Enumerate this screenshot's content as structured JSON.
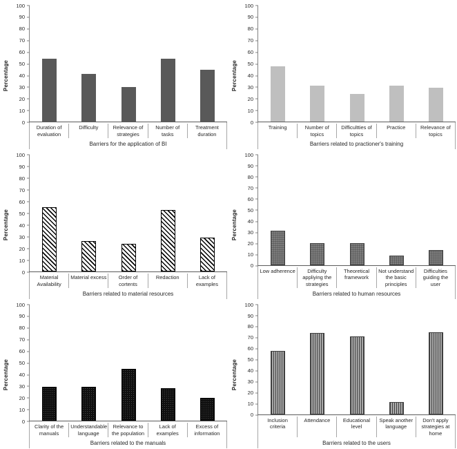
{
  "figure": {
    "description": "Six bar charts of reported barriers (percentage)"
  },
  "chart_data": [
    {
      "type": "bar",
      "title": "Barriers for the application of BI",
      "ylabel": "Percentage",
      "ylim": [
        0,
        100
      ],
      "yticks": [
        0,
        10,
        20,
        30,
        40,
        50,
        60,
        70,
        80,
        90,
        100
      ],
      "grid": false,
      "legend": "none",
      "bar_style": "solid-dark",
      "categories": [
        "Duration of evaluation",
        "Difficulty",
        "Relevance of strategies",
        "Number of tasks",
        "Treatment duration"
      ],
      "values": [
        54,
        41,
        30,
        54,
        45
      ]
    },
    {
      "type": "bar",
      "title": "Barriers related to practioner's training",
      "ylabel": "Percentage",
      "ylim": [
        0,
        100
      ],
      "yticks": [
        0,
        10,
        20,
        30,
        40,
        50,
        60,
        70,
        80,
        90,
        100
      ],
      "grid": false,
      "legend": "none",
      "bar_style": "solid-light",
      "categories": [
        "Training",
        "Number of topics",
        "Difficultties of topics",
        "Practice",
        "Relevance of topics"
      ],
      "values": [
        48,
        31,
        24,
        31,
        29
      ]
    },
    {
      "type": "bar",
      "title": "Barriers related to material resources",
      "ylabel": "Percentage",
      "ylim": [
        0,
        100
      ],
      "yticks": [
        0,
        10,
        20,
        30,
        40,
        50,
        60,
        70,
        80,
        90,
        100
      ],
      "grid": false,
      "legend": "none",
      "bar_style": "diagonal-hatch",
      "categories": [
        "Material Availability",
        "Material excess",
        "Order of cortents",
        "Redaction",
        "Lack of examples"
      ],
      "values": [
        55,
        26,
        24,
        53,
        29
      ]
    },
    {
      "type": "bar",
      "title": "Barriers related to human resources",
      "ylabel": "Percentage",
      "ylim": [
        0,
        100
      ],
      "yticks": [
        0,
        10,
        20,
        30,
        40,
        50,
        60,
        70,
        80,
        90,
        100
      ],
      "grid": false,
      "legend": "none",
      "bar_style": "gray-grid",
      "categories": [
        "Low adherence",
        "Difficulty appliying the strategies",
        "Theoretical framework",
        "Not understand the basic principles",
        "Difficulties guiding the user"
      ],
      "values": [
        31,
        20,
        20,
        9,
        14
      ]
    },
    {
      "type": "bar",
      "title": "Barriers related to the manuals",
      "ylabel": "Percentage",
      "ylim": [
        0,
        100
      ],
      "yticks": [
        0,
        10,
        20,
        30,
        40,
        50,
        60,
        70,
        80,
        90,
        100
      ],
      "grid": false,
      "legend": "none",
      "bar_style": "black-dots",
      "categories": [
        "Clarity of the manuals",
        "Understandable language",
        "Relevance to the population",
        "Lack of examples",
        "Excess of information"
      ],
      "values": [
        29,
        29,
        45,
        28,
        20
      ]
    },
    {
      "type": "bar",
      "title": "Barriers related to the users",
      "ylabel": "Percentage",
      "ylim": [
        0,
        100
      ],
      "yticks": [
        0,
        10,
        20,
        30,
        40,
        50,
        60,
        70,
        80,
        90,
        100
      ],
      "grid": false,
      "legend": "none",
      "bar_style": "vert-lines",
      "categories": [
        "Inclusion criteria",
        "Attendance",
        "Educational level",
        "Speak another language",
        "Don't apply strategies at home"
      ],
      "values": [
        58,
        74,
        71,
        11,
        75
      ]
    }
  ],
  "colors": {
    "solid_dark": "#595959",
    "solid_light": "#bfbfbf",
    "gray_fill": "#7f7f7f",
    "black_fill": "#0f0f0f",
    "axis_line": "#595959",
    "tick_line": "#808080",
    "separator_line": "#a6a6a6",
    "text": "#262626"
  }
}
